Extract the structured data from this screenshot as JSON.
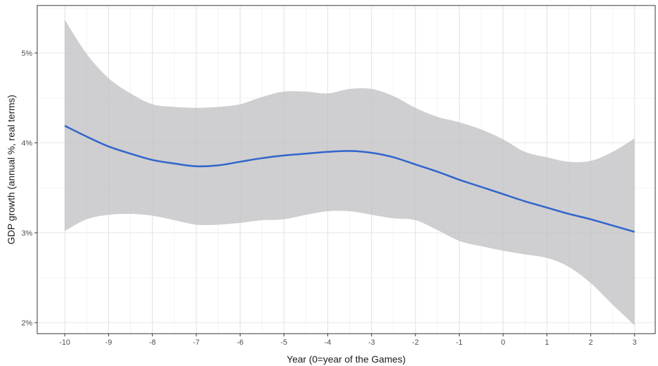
{
  "chart_data": {
    "type": "line",
    "title": "",
    "xlabel": "Year (0=year of the Games)",
    "ylabel": "GDP growth (annual %, real terms)",
    "xlim": [
      -10.2,
      3.1
    ],
    "ylim": [
      1.95,
      5.55
    ],
    "x_ticks": [
      -10,
      -9,
      -8,
      -7,
      -6,
      -5,
      -4,
      -3,
      -2,
      -1,
      0,
      1,
      2,
      3
    ],
    "x_tick_labels": [
      "-10",
      "-9",
      "-8",
      "-7",
      "-6",
      "-5",
      "-4",
      "-3",
      "-2",
      "-1",
      "0",
      "1",
      "2",
      "3"
    ],
    "y_ticks": [
      2,
      3,
      4,
      5
    ],
    "y_tick_labels": [
      "2%",
      "3%",
      "4%",
      "5%"
    ],
    "grid": true,
    "colors": {
      "line": "#3366cc",
      "band": "#bfbfc1",
      "panel_border": "#333333",
      "grid": "#e6e6e6"
    },
    "series": [
      {
        "x": [
          -10,
          -9.5,
          -9,
          -8.5,
          -8,
          -7.5,
          -7,
          -6.5,
          -6,
          -5.5,
          -5,
          -4.5,
          -4,
          -3.5,
          -3,
          -2.5,
          -2,
          -1.5,
          -1,
          -0.5,
          0,
          0.5,
          1,
          1.5,
          2,
          2.5,
          3
        ],
        "y": [
          4.19,
          4.07,
          3.96,
          3.88,
          3.81,
          3.77,
          3.74,
          3.75,
          3.79,
          3.83,
          3.86,
          3.88,
          3.9,
          3.91,
          3.89,
          3.84,
          3.76,
          3.68,
          3.59,
          3.51,
          3.43,
          3.35,
          3.28,
          3.21,
          3.15,
          3.08,
          3.01
        ],
        "lower": [
          3.02,
          3.15,
          3.2,
          3.21,
          3.19,
          3.14,
          3.09,
          3.09,
          3.11,
          3.14,
          3.15,
          3.2,
          3.24,
          3.24,
          3.2,
          3.16,
          3.14,
          3.03,
          2.91,
          2.85,
          2.8,
          2.76,
          2.72,
          2.62,
          2.44,
          2.2,
          1.97
        ],
        "upper": [
          5.37,
          4.99,
          4.72,
          4.55,
          4.43,
          4.4,
          4.39,
          4.4,
          4.43,
          4.51,
          4.57,
          4.57,
          4.55,
          4.6,
          4.6,
          4.52,
          4.39,
          4.29,
          4.23,
          4.15,
          4.04,
          3.9,
          3.84,
          3.79,
          3.8,
          3.9,
          4.05
        ]
      }
    ]
  }
}
